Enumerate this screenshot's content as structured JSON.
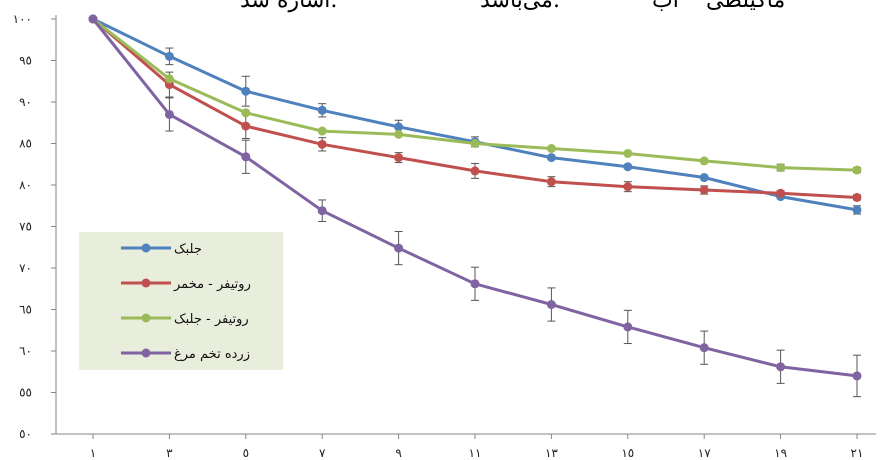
{
  "caption_fragments": [
    "ماکیلطی",
    "آب",
    "می‌باشد.",
    "اشاره شد."
  ],
  "chart_data": {
    "type": "line",
    "x": [
      1,
      3,
      5,
      7,
      9,
      11,
      13,
      15,
      17,
      19,
      21
    ],
    "x_tick_labels": [
      "١",
      "٣",
      "٥",
      "٧",
      "٩",
      "١١",
      "١٣",
      "١٥",
      "١٧",
      "١٩",
      "٢١"
    ],
    "ylim": [
      50,
      100
    ],
    "y_ticks": [
      50,
      55,
      60,
      65,
      70,
      75,
      80,
      85,
      90,
      95,
      100
    ],
    "y_tick_labels": [
      "٥٠",
      "٥٥",
      "٦٠",
      "٦٥",
      "٧٠",
      "٧٥",
      "٨٠",
      "٨٥",
      "٩٠",
      "٩٥",
      "١٠٠"
    ],
    "grid": false,
    "legend_position": "left",
    "series": [
      {
        "name": "جلبک",
        "color": "#4f81bd",
        "values": [
          100,
          95.5,
          91.3,
          89.0,
          87.0,
          85.2,
          83.3,
          82.2,
          80.9,
          78.6,
          77.0
        ],
        "errors": [
          0,
          1.0,
          1.8,
          0.8,
          0.8,
          0.6,
          0,
          0,
          0,
          0,
          0.5
        ]
      },
      {
        "name": "روتیفر - مخمر",
        "color": "#c0504d",
        "values": [
          100,
          92.1,
          87.1,
          84.9,
          83.3,
          81.7,
          80.4,
          79.8,
          79.4,
          79.0,
          78.5
        ],
        "errors": [
          0,
          1.5,
          1.5,
          0.8,
          0.6,
          0.9,
          0.6,
          0.6,
          0.5,
          0.3,
          0.3
        ]
      },
      {
        "name": "روتیفر - جلبک",
        "color": "#9bbb59",
        "values": [
          100,
          92.8,
          88.7,
          86.5,
          86.1,
          85.0,
          84.4,
          83.8,
          82.9,
          82.1,
          81.8
        ],
        "errors": [
          0,
          0,
          0,
          0,
          0,
          0,
          0,
          0,
          0,
          0.4,
          0.3
        ]
      },
      {
        "name": "زرده تخم مرغ",
        "color": "#8064a2",
        "values": [
          100,
          88.5,
          83.4,
          76.9,
          72.4,
          68.1,
          65.6,
          62.9,
          60.4,
          58.1,
          57.0
        ],
        "errors": [
          0,
          2.0,
          2.0,
          1.3,
          2.0,
          2.0,
          2.0,
          2.0,
          2.0,
          2.0,
          2.5
        ]
      }
    ]
  }
}
